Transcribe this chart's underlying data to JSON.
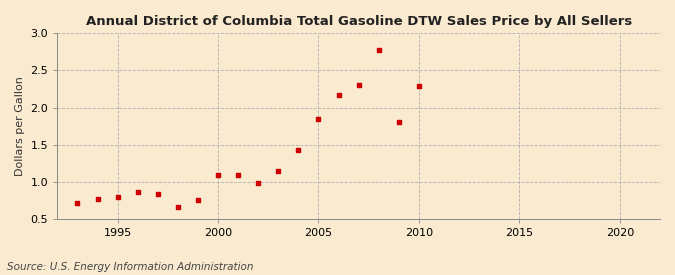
{
  "title": "Annual District of Columbia Total Gasoline DTW Sales Price by All Sellers",
  "ylabel": "Dollars per Gallon",
  "source": "Source: U.S. Energy Information Administration",
  "years": [
    1993,
    1994,
    1995,
    1996,
    1997,
    1998,
    1999,
    2000,
    2001,
    2002,
    2003,
    2004,
    2005,
    2006,
    2007,
    2008,
    2009,
    2010
  ],
  "values": [
    0.72,
    0.77,
    0.8,
    0.86,
    0.84,
    0.66,
    0.76,
    1.09,
    1.09,
    0.99,
    1.15,
    1.43,
    1.84,
    2.17,
    2.31,
    2.77,
    1.8,
    2.29
  ],
  "marker_color": "#cc0000",
  "bg_color": "#faebd0",
  "grid_color": "#aaaaaa",
  "xlim": [
    1992,
    2022
  ],
  "ylim": [
    0.5,
    3.0
  ],
  "xticks": [
    1995,
    2000,
    2005,
    2010,
    2015,
    2020
  ],
  "yticks": [
    0.5,
    1.0,
    1.5,
    2.0,
    2.5,
    3.0
  ],
  "title_fontsize": 9.5,
  "label_fontsize": 8,
  "tick_fontsize": 8,
  "source_fontsize": 7.5
}
